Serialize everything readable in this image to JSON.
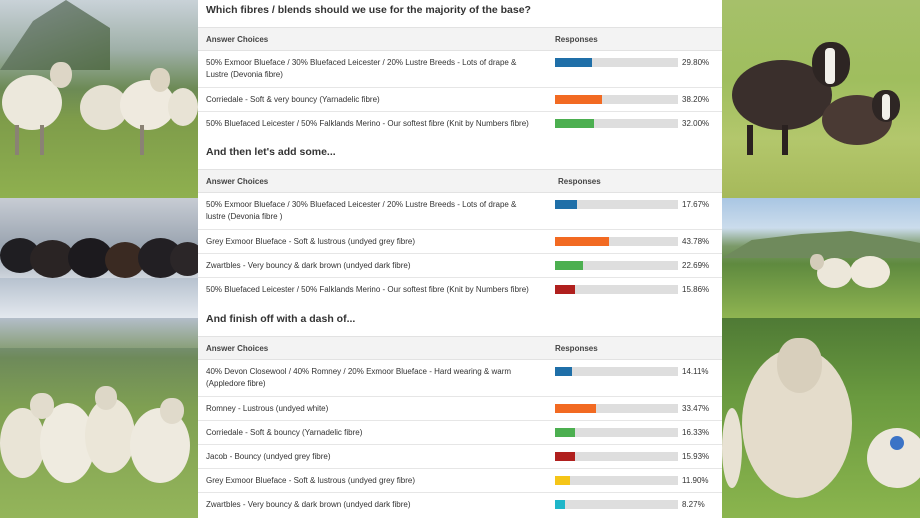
{
  "question": "Which fibres / blends should we use for the majority of the base?",
  "tables": [
    {
      "heading": "",
      "col_answer": "Answer Choices",
      "col_responses": "Responses",
      "rows": [
        {
          "label": "50% Exmoor Blueface / 30% Bluefaced Leicester / 20% Lustre Breeds - Lots of drape & Lustre (Devonia fibre)",
          "percent_text": "29.80%",
          "value": 29.8,
          "color": "#1f6fa8"
        },
        {
          "label": "Corriedale - Soft & very bouncy (Yarnadelic fibre)",
          "percent_text": "38.20%",
          "value": 38.2,
          "color": "#f26a22"
        },
        {
          "label": "50% Bluefaced Leicester / 50% Falklands Merino - Our softest fibre (Knit by Numbers fibre)",
          "percent_text": "32.00%",
          "value": 32.0,
          "color": "#4caf50"
        }
      ]
    },
    {
      "heading": "And then let's add some...",
      "col_answer": "Answer Choices",
      "col_responses": "Responses",
      "rows": [
        {
          "label": "50% Exmoor Blueface / 30% Bluefaced Leicester / 20% Lustre Breeds - Lots of drape & lustre (Devonia fibre )",
          "percent_text": "17.67%",
          "value": 17.67,
          "color": "#1f6fa8"
        },
        {
          "label": "Grey Exmoor Blueface - Soft & lustrous (undyed grey fibre)",
          "percent_text": "43.78%",
          "value": 43.78,
          "color": "#f26a22"
        },
        {
          "label": "Zwartbles - Very bouncy & dark brown (undyed dark fibre)",
          "percent_text": "22.69%",
          "value": 22.69,
          "color": "#4caf50"
        },
        {
          "label": "50% Bluefaced Leicester / 50% Falklands Merino - Our softest fibre (Knit by Numbers fibre)",
          "percent_text": "15.86%",
          "value": 15.86,
          "color": "#b0201e"
        }
      ]
    },
    {
      "heading": "And finish off with a dash of...",
      "col_answer": "Answer Choices",
      "col_responses": "Responses",
      "rows": [
        {
          "label": "40% Devon Closewool / 40% Romney / 20% Exmoor Blueface - Hard wearing & warm (Appledore fibre)",
          "percent_text": "14.11%",
          "value": 14.11,
          "color": "#1f6fa8"
        },
        {
          "label": "Romney - Lustrous (undyed white)",
          "percent_text": "33.47%",
          "value": 33.47,
          "color": "#f26a22"
        },
        {
          "label": "Corriedale - Soft & bouncy (Yarnadelic fibre)",
          "percent_text": "16.33%",
          "value": 16.33,
          "color": "#4caf50"
        },
        {
          "label": "Jacob - Bouncy (undyed grey fibre)",
          "percent_text": "15.93%",
          "value": 15.93,
          "color": "#b0201e"
        },
        {
          "label": "Grey Exmoor Blueface - Soft & lustrous (undyed grey fibre)",
          "percent_text": "11.90%",
          "value": 11.9,
          "color": "#f5c518"
        },
        {
          "label": "Zwartbles - Very bouncy & dark brown (undyed dark fibre)",
          "percent_text": "8.27%",
          "value": 8.27,
          "color": "#1fb6c9"
        }
      ]
    }
  ],
  "photos": [
    {
      "name": "white sheep flock on hillside"
    },
    {
      "name": "dark sheep flock in frost"
    },
    {
      "name": "white sheep flock in field"
    },
    {
      "name": "zwartbles sheep in meadow"
    },
    {
      "name": "sheep in hilly pasture"
    },
    {
      "name": "romney sheep close-up"
    }
  ]
}
